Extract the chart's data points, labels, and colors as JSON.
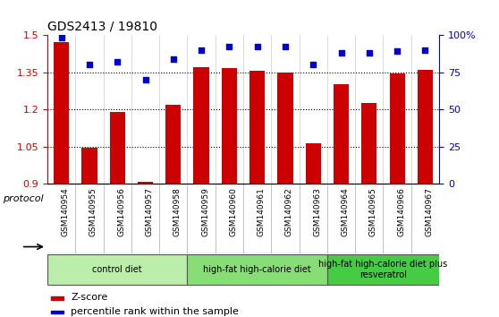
{
  "title": "GDS2413 / 19810",
  "samples": [
    "GSM140954",
    "GSM140955",
    "GSM140956",
    "GSM140957",
    "GSM140958",
    "GSM140959",
    "GSM140960",
    "GSM140961",
    "GSM140962",
    "GSM140963",
    "GSM140964",
    "GSM140965",
    "GSM140966",
    "GSM140967"
  ],
  "z_scores": [
    1.47,
    1.045,
    1.19,
    0.91,
    1.22,
    1.37,
    1.365,
    1.355,
    1.35,
    1.065,
    1.3,
    1.225,
    1.345,
    1.36
  ],
  "percentile_ranks": [
    98,
    80,
    82,
    70,
    84,
    90,
    92,
    92,
    92,
    80,
    88,
    88,
    89,
    90
  ],
  "bar_color": "#cc0000",
  "dot_color": "#0000cc",
  "ylim_left": [
    0.9,
    1.5
  ],
  "ylim_right": [
    0,
    100
  ],
  "yticks_left": [
    0.9,
    1.05,
    1.2,
    1.35,
    1.5
  ],
  "yticks_right": [
    0,
    25,
    50,
    75,
    100
  ],
  "ytick_labels_right": [
    "0",
    "25",
    "50",
    "75",
    "100%"
  ],
  "dotted_levels": [
    1.05,
    1.2,
    1.35
  ],
  "groups": [
    {
      "label": "control diet",
      "start": 0,
      "end": 4,
      "color": "#bbeeaa"
    },
    {
      "label": "high-fat high-calorie diet",
      "start": 5,
      "end": 9,
      "color": "#88dd77"
    },
    {
      "label": "high-fat high-calorie diet plus\nresveratrol",
      "start": 10,
      "end": 13,
      "color": "#44cc44"
    }
  ],
  "legend_zscore_label": "Z-score",
  "legend_percentile_label": "percentile rank within the sample",
  "protocol_label": "protocol",
  "xtick_bg_color": "#d8d8d8",
  "spine_color": "#000000"
}
